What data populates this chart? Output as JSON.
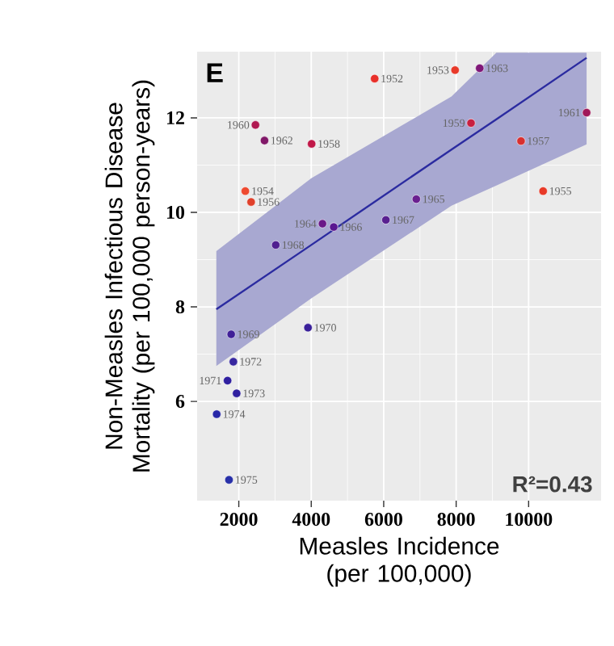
{
  "chart_data": {
    "type": "scatter",
    "title": "E",
    "xlabel": "Measles Incidence (per 100,000)",
    "ylabel": "Non-Measles Infectious Disease Mortality (per 100,000 person-years)",
    "xlim": [
      850,
      12000
    ],
    "ylim": [
      3.9,
      13.4
    ],
    "xticks": [
      2000,
      4000,
      6000,
      8000,
      10000
    ],
    "yticks": [
      6,
      8,
      10,
      12
    ],
    "grid": true,
    "series": [
      {
        "type": "scatter",
        "marker": "circle",
        "x": [
          5750,
          7970,
          2180,
          10400,
          2340,
          9790,
          4010,
          8410,
          2460,
          11600,
          2710,
          8650,
          4310,
          6900,
          4620,
          6060,
          3020,
          1790,
          3910,
          1690,
          1850,
          1940,
          1390,
          1730
        ],
        "values": [
          12.83,
          13.01,
          10.45,
          10.45,
          10.22,
          11.51,
          11.45,
          11.89,
          11.85,
          12.11,
          11.52,
          13.05,
          9.76,
          10.28,
          9.69,
          9.84,
          9.31,
          7.42,
          7.56,
          6.44,
          6.84,
          6.17,
          5.73,
          4.34
        ],
        "colors": [
          "#e8302a",
          "#e83a2a",
          "#ee4a30",
          "#e83a28",
          "#e0402a",
          "#d83030",
          "#c01848",
          "#c82040",
          "#b01850",
          "#a01858",
          "#801868",
          "#801878",
          "#6a1888",
          "#6a2090",
          "#5a1890",
          "#582090",
          "#502090",
          "#402098",
          "#3a209a",
          "#3020a0",
          "#3828a0",
          "#3020a0",
          "#2828a8",
          "#2830a8"
        ]
      },
      {
        "type": "line",
        "color": "#2b2ba0",
        "x": [
          1380,
          4000,
          7870,
          9110,
          11600
        ],
        "values": [
          7.95,
          9.31,
          11.33,
          11.97,
          13.27
        ],
        "lower": [
          6.75,
          8.18,
          10.14,
          10.57,
          11.44
        ],
        "upper": [
          9.18,
          10.72,
          12.45,
          13.38,
          13.38
        ]
      }
    ],
    "annotations": [
      "R²=0.43",
      {
        "text": "1952",
        "x": 5750,
        "y": 12.83
      },
      {
        "text": "1953",
        "x": 7970,
        "y": 13.01
      },
      {
        "text": "1954",
        "x": 2180,
        "y": 10.45
      },
      {
        "text": "1955",
        "x": 10400,
        "y": 10.45
      },
      {
        "text": "1956",
        "x": 2340,
        "y": 10.22
      },
      {
        "text": "1957",
        "x": 9790,
        "y": 11.51
      },
      {
        "text": "1958",
        "x": 4010,
        "y": 11.45
      },
      {
        "text": "1959",
        "x": 8410,
        "y": 11.89
      },
      {
        "text": "1960",
        "x": 2460,
        "y": 11.85
      },
      {
        "text": "1961",
        "x": 11600,
        "y": 12.11
      },
      {
        "text": "1962",
        "x": 2710,
        "y": 11.52
      },
      {
        "text": "1963",
        "x": 8650,
        "y": 13.05
      },
      {
        "text": "1964",
        "x": 4310,
        "y": 9.76
      },
      {
        "text": "1965",
        "x": 6900,
        "y": 10.28
      },
      {
        "text": "1966",
        "x": 4620,
        "y": 9.69
      },
      {
        "text": "1967",
        "x": 6060,
        "y": 9.84
      },
      {
        "text": "1968",
        "x": 3020,
        "y": 9.31
      },
      {
        "text": "1969",
        "x": 1790,
        "y": 7.42
      },
      {
        "text": "1970",
        "x": 3910,
        "y": 7.56
      },
      {
        "text": "1971",
        "x": 1690,
        "y": 6.44
      },
      {
        "text": "1972",
        "x": 1850,
        "y": 6.84
      },
      {
        "text": "1973",
        "x": 1940,
        "y": 6.17
      },
      {
        "text": "1974",
        "x": 1390,
        "y": 5.73
      },
      {
        "text": "1975",
        "x": 1730,
        "y": 4.34
      }
    ]
  }
}
